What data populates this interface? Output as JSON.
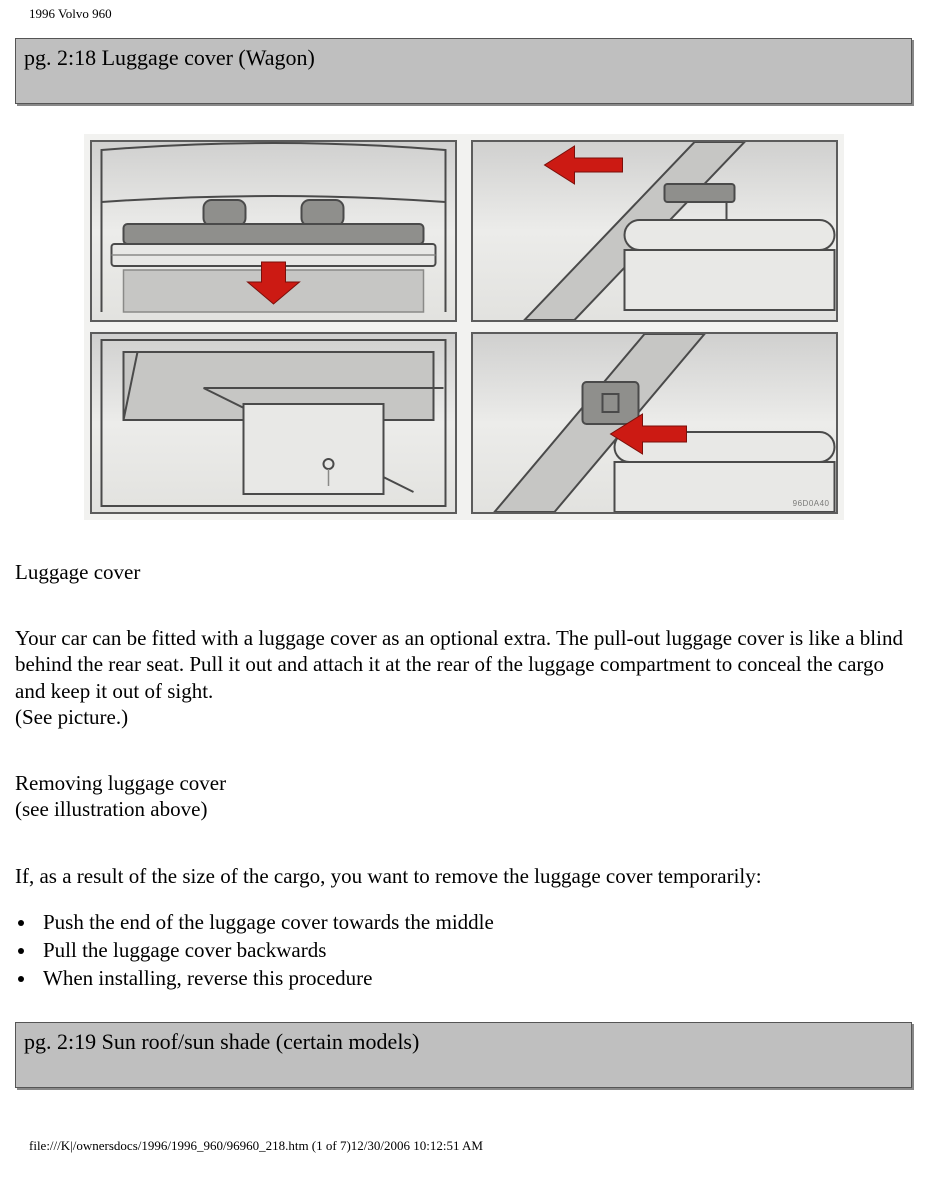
{
  "doc_title": "1996 Volvo 960",
  "banner1": "pg. 2:18 Luggage cover (Wagon)",
  "diagram_small_label": "96D0A40",
  "section1_heading": "Luggage cover",
  "section1_body": "Your car can be fitted with a luggage cover as an optional extra. The pull-out luggage cover is like a blind behind the rear seat. Pull it out and attach it at the rear of the luggage compartment to conceal the cargo and keep it out of sight.\n(See picture.)",
  "section2_heading": "Removing luggage cover\n(see illustration above)",
  "section2_body": "If, as a result of the size of the cargo, you want to remove the luggage cover temporarily:",
  "steps": [
    "Push the end of the luggage cover towards the middle",
    "Pull the luggage cover backwards",
    "When installing, reverse this procedure"
  ],
  "banner2": "pg. 2:19 Sun roof/sun shade (certain models)",
  "footer": "file:///K|/ownersdocs/1996/1996_960/96960_218.htm (1 of 7)12/30/2006 10:12:51 AM",
  "colors": {
    "banner_bg": "#bfbfbf",
    "arrow": "#cc1a13",
    "panel_border": "#5c5c5c"
  }
}
